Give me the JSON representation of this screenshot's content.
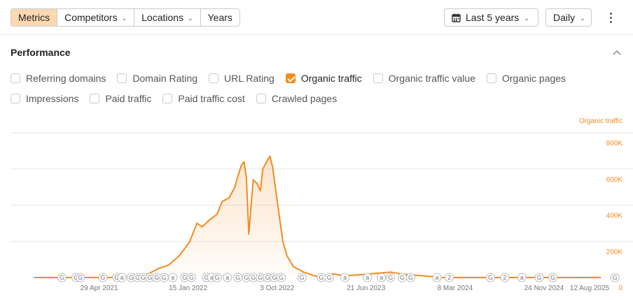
{
  "toolbar": {
    "tabs": [
      {
        "label": "Metrics",
        "active": true,
        "dropdown": false
      },
      {
        "label": "Competitors",
        "active": false,
        "dropdown": true
      },
      {
        "label": "Locations",
        "active": false,
        "dropdown": true
      },
      {
        "label": "Years",
        "active": false,
        "dropdown": false
      }
    ],
    "period": {
      "label": "Last 5 years",
      "icon": "calendar-icon"
    },
    "granularity": {
      "label": "Daily"
    },
    "more_icon": "more-vertical-icon"
  },
  "performance": {
    "title": "Performance",
    "collapse_icon": "chevron-up-icon",
    "metrics_row1": [
      {
        "label": "Referring domains",
        "checked": false
      },
      {
        "label": "Domain Rating",
        "checked": false
      },
      {
        "label": "URL Rating",
        "checked": false
      },
      {
        "label": "Organic traffic",
        "checked": true
      },
      {
        "label": "Organic traffic value",
        "checked": false
      },
      {
        "label": "Organic pages",
        "checked": false
      }
    ],
    "metrics_row2": [
      {
        "label": "Impressions",
        "checked": false
      },
      {
        "label": "Paid traffic",
        "checked": false
      },
      {
        "label": "Paid traffic cost",
        "checked": false
      },
      {
        "label": "Crawled pages",
        "checked": false
      }
    ]
  },
  "colors": {
    "accent": "#f28c1e",
    "active_tab": "#fcd9b0",
    "grid": "#e6e6e9"
  },
  "chart_data": {
    "type": "area",
    "ylabel": "Organic traffic",
    "ylim": [
      0,
      800000
    ],
    "y_ticks": [
      "0",
      "200K",
      "400K",
      "600K",
      "800K"
    ],
    "y_tick_values": [
      0,
      200000,
      400000,
      600000,
      800000
    ],
    "x_tick_labels": [
      "29 Apr 2021",
      "15 Jan 2022",
      "3 Oct 2022",
      "21 Jun 2023",
      "8 Mar 2024",
      "24 Nov 2024",
      "12 Aug 2025"
    ],
    "x_range": [
      "2020-08-12",
      "2025-08-12"
    ],
    "grid": true,
    "series": [
      {
        "name": "Organic traffic",
        "color": "#f28c1e",
        "points": [
          [
            "2020-08-12",
            0
          ],
          [
            "2021-05-20",
            0
          ],
          [
            "2021-08-20",
            2000
          ],
          [
            "2021-09-20",
            20000
          ],
          [
            "2021-10-20",
            50000
          ],
          [
            "2021-11-20",
            70000
          ],
          [
            "2021-12-20",
            120000
          ],
          [
            "2022-01-05",
            160000
          ],
          [
            "2022-01-20",
            200000
          ],
          [
            "2022-02-10",
            300000
          ],
          [
            "2022-02-25",
            280000
          ],
          [
            "2022-03-20",
            320000
          ],
          [
            "2022-04-10",
            350000
          ],
          [
            "2022-04-25",
            420000
          ],
          [
            "2022-05-15",
            440000
          ],
          [
            "2022-06-01",
            500000
          ],
          [
            "2022-06-10",
            560000
          ],
          [
            "2022-06-20",
            620000
          ],
          [
            "2022-06-28",
            640000
          ],
          [
            "2022-07-05",
            550000
          ],
          [
            "2022-07-12",
            240000
          ],
          [
            "2022-07-25",
            540000
          ],
          [
            "2022-08-05",
            520000
          ],
          [
            "2022-08-15",
            480000
          ],
          [
            "2022-08-22",
            600000
          ],
          [
            "2022-09-05",
            650000
          ],
          [
            "2022-09-12",
            670000
          ],
          [
            "2022-09-20",
            610000
          ],
          [
            "2022-10-05",
            400000
          ],
          [
            "2022-10-20",
            200000
          ],
          [
            "2022-11-01",
            120000
          ],
          [
            "2022-11-20",
            60000
          ],
          [
            "2022-12-20",
            30000
          ],
          [
            "2023-01-20",
            10000
          ],
          [
            "2023-02-10",
            0
          ],
          [
            "2023-03-15",
            20000
          ],
          [
            "2023-04-20",
            10000
          ],
          [
            "2023-06-01",
            15000
          ],
          [
            "2023-07-01",
            20000
          ],
          [
            "2023-08-01",
            25000
          ],
          [
            "2023-09-01",
            30000
          ],
          [
            "2023-10-01",
            20000
          ],
          [
            "2023-12-01",
            10000
          ],
          [
            "2024-02-01",
            0
          ],
          [
            "2024-04-01",
            0
          ],
          [
            "2025-08-12",
            0
          ]
        ]
      }
    ],
    "annotations": [
      {
        "date": "2021-01-10",
        "label": "G"
      },
      {
        "date": "2021-02-20",
        "label": "G"
      },
      {
        "date": "2021-03-05",
        "label": "G"
      },
      {
        "date": "2021-05-10",
        "label": "G"
      },
      {
        "date": "2021-06-20",
        "label": "G"
      },
      {
        "date": "2021-07-05",
        "label": "a"
      },
      {
        "date": "2021-08-01",
        "label": "G"
      },
      {
        "date": "2021-08-20",
        "label": "G"
      },
      {
        "date": "2021-09-05",
        "label": "G"
      },
      {
        "date": "2021-09-25",
        "label": "G"
      },
      {
        "date": "2021-10-15",
        "label": "G"
      },
      {
        "date": "2021-11-05",
        "label": "G"
      },
      {
        "date": "2021-12-01",
        "label": "a"
      },
      {
        "date": "2022-01-05",
        "label": "G"
      },
      {
        "date": "2022-01-25",
        "label": "G"
      },
      {
        "date": "2022-03-10",
        "label": "G"
      },
      {
        "date": "2022-03-25",
        "label": "a"
      },
      {
        "date": "2022-04-10",
        "label": "G"
      },
      {
        "date": "2022-05-10",
        "label": "a"
      },
      {
        "date": "2022-06-10",
        "label": "G"
      },
      {
        "date": "2022-07-05",
        "label": "G"
      },
      {
        "date": "2022-07-25",
        "label": "G"
      },
      {
        "date": "2022-08-15",
        "label": "G"
      },
      {
        "date": "2022-09-05",
        "label": "G"
      },
      {
        "date": "2022-09-25",
        "label": "G"
      },
      {
        "date": "2022-10-15",
        "label": "G"
      },
      {
        "date": "2022-12-15",
        "label": "G"
      },
      {
        "date": "2023-02-10",
        "label": "G"
      },
      {
        "date": "2023-03-05",
        "label": "G"
      },
      {
        "date": "2023-04-20",
        "label": "a"
      },
      {
        "date": "2023-06-25",
        "label": "a"
      },
      {
        "date": "2023-08-05",
        "label": "a"
      },
      {
        "date": "2023-09-01",
        "label": "G"
      },
      {
        "date": "2023-10-05",
        "label": "G"
      },
      {
        "date": "2023-10-30",
        "label": "G"
      },
      {
        "date": "2024-01-15",
        "label": "a"
      },
      {
        "date": "2024-02-20",
        "label": "2"
      },
      {
        "date": "2024-06-20",
        "label": "G"
      },
      {
        "date": "2024-08-01",
        "label": "2"
      },
      {
        "date": "2024-09-20",
        "label": "a"
      },
      {
        "date": "2024-11-10",
        "label": "G"
      },
      {
        "date": "2024-12-20",
        "label": "G"
      },
      {
        "date": "2025-06-20",
        "label": "G"
      }
    ]
  }
}
